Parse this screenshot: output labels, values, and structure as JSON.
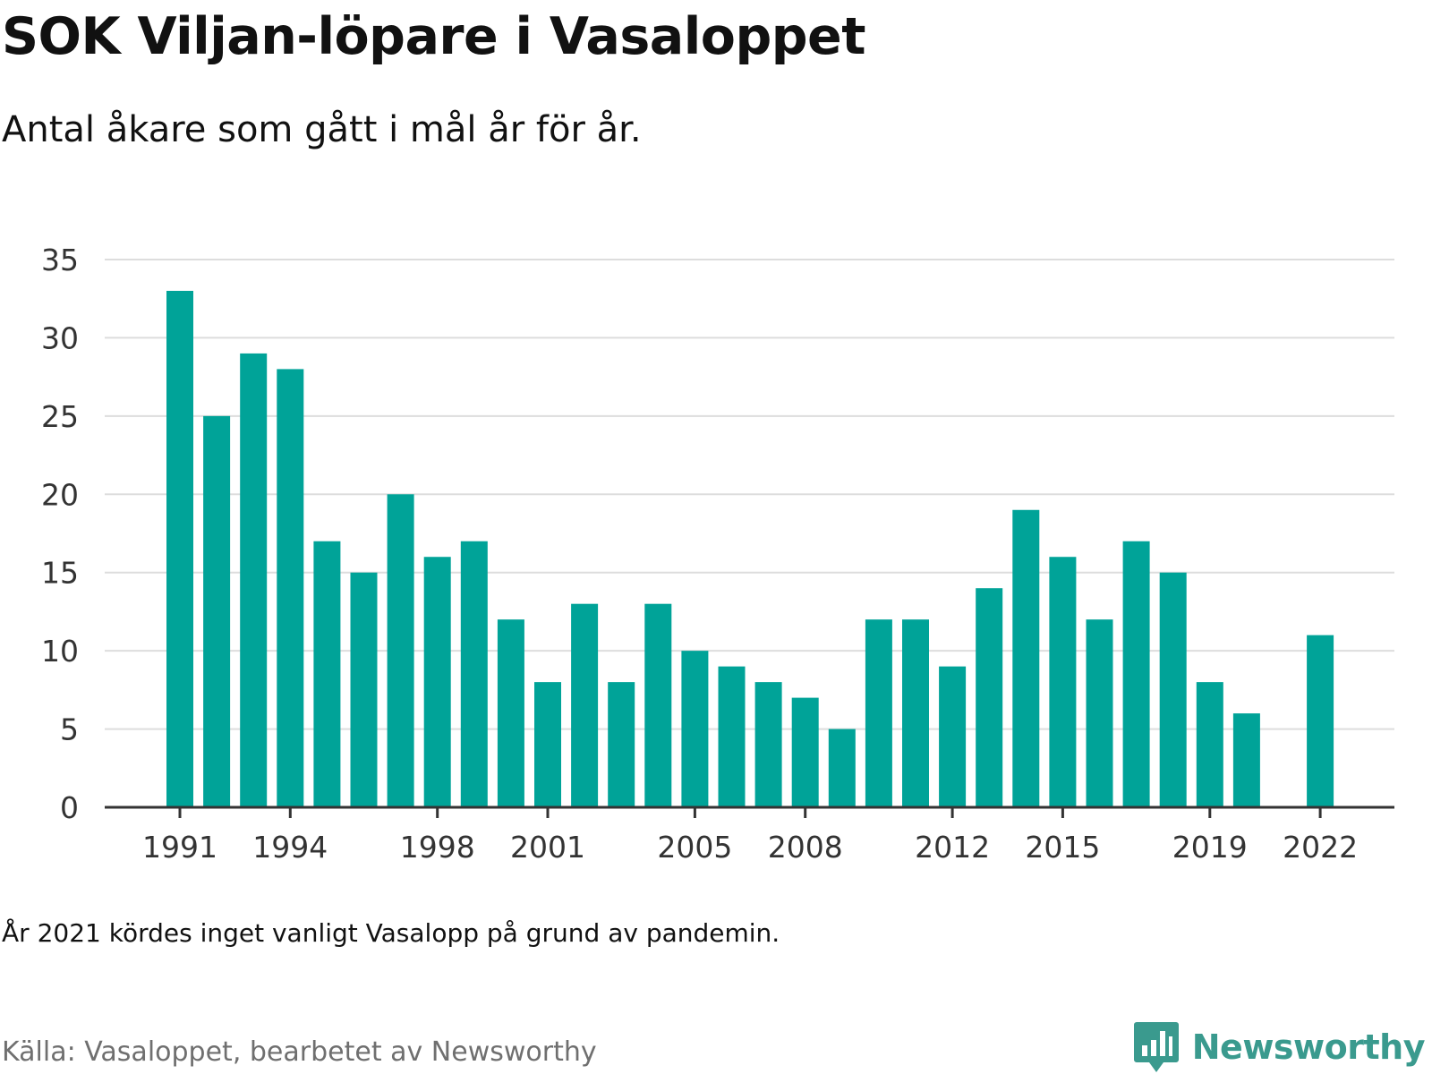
{
  "header": {
    "title": "SOK Viljan-löpare i Vasaloppet",
    "subtitle": "Antal åkare som gått i mål år för år."
  },
  "footer": {
    "note": "År 2021 kördes inget vanligt Vasalopp på grund av pandemin.",
    "source": "Källa: Vasaloppet, bearbetet av Newsworthy",
    "brand": "Newsworthy",
    "brand_icon": "newsworthy-logo-icon"
  },
  "colors": {
    "bar": "#00a398",
    "grid": "#dddddd",
    "axis": "#333333",
    "brand": "#3a9a8e"
  },
  "chart_data": {
    "type": "bar",
    "categories": [
      1991,
      1992,
      1993,
      1994,
      1995,
      1996,
      1997,
      1998,
      1999,
      2000,
      2001,
      2002,
      2003,
      2004,
      2005,
      2006,
      2007,
      2008,
      2009,
      2010,
      2011,
      2012,
      2013,
      2014,
      2015,
      2016,
      2017,
      2018,
      2019,
      2020,
      2021,
      2022
    ],
    "values": [
      33,
      25,
      29,
      28,
      17,
      15,
      20,
      16,
      17,
      12,
      8,
      13,
      8,
      13,
      10,
      9,
      8,
      7,
      5,
      12,
      12,
      9,
      14,
      19,
      16,
      12,
      17,
      15,
      8,
      6,
      null,
      11
    ],
    "x_tick_labels": [
      "1991",
      "1994",
      "1998",
      "2001",
      "2005",
      "2008",
      "2012",
      "2015",
      "2019",
      "2022"
    ],
    "y_ticks": [
      0,
      5,
      10,
      15,
      20,
      25,
      30,
      35
    ],
    "ylim": [
      0,
      35
    ],
    "grid": true
  }
}
